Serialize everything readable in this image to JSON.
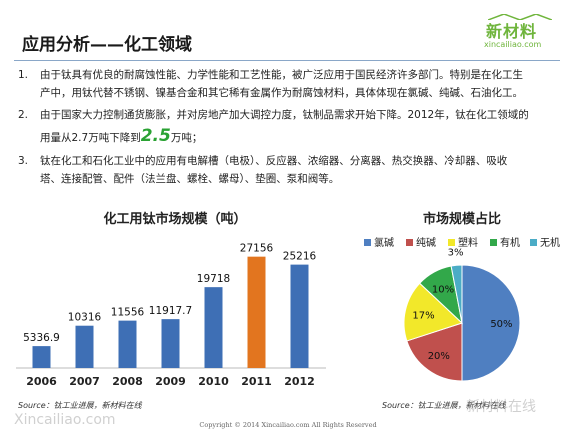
{
  "page": {
    "title": "应用分析——化工领域",
    "logo_main": "新材料",
    "logo_sub": "xincailiao.com",
    "copyright": "Copyright © 2014   Xincailiao.com   All Rights Reserved"
  },
  "bullets": [
    {
      "num": "1.",
      "lines": [
        "由于钛具有优良的耐腐蚀性能、力学性能和工艺性能，被广泛应用于国民经济许多部门。特别是在化工生",
        "产中，用钛代替不锈钢、镍基合金和其它稀有金属作为耐腐蚀材料，具体体现在氯碱、纯碱、石油化工。"
      ]
    },
    {
      "num": "2.",
      "line1": "由于国家大力控制通货膨胀，并对房地产加大调控力度，钛制品需求开始下降。2012年，钛在化工领域的",
      "pre": "用量从2.7万吨下降到",
      "big": "2.5",
      "post": "万吨；"
    },
    {
      "num": "3.",
      "lines": [
        "钛在化工和石化工业中的应用有电解槽（电极）、反应器、浓缩器、分离器、热交换器、冷却器、吸收",
        "塔、连接配管、配件（法兰盘、螺栓、螺母）、垫圈、泵和阀等。"
      ]
    }
  ],
  "chart_data": [
    {
      "type": "bar",
      "title": "化工用钛市场规模（吨）",
      "categories": [
        "2006",
        "2007",
        "2008",
        "2009",
        "2010",
        "2011",
        "2012"
      ],
      "values": [
        5336.9,
        10316,
        11556,
        11917.7,
        19718,
        27156,
        25216
      ],
      "value_labels": [
        "5336.9",
        "10316",
        "11556",
        "11917.7",
        "19718",
        "27156",
        "25216"
      ],
      "highlight_index": 5,
      "colors": {
        "bar": "#3e6fb5",
        "highlight": "#e2751f"
      },
      "ylim": [
        0,
        30000
      ],
      "grid": false,
      "source": "Source：钛工业进展，新材料在线"
    },
    {
      "type": "pie",
      "title": "市场规模占比",
      "legend_position": "top",
      "slices": [
        {
          "name": "氯碱",
          "value": 50,
          "label": "50%",
          "color": "#4f7fc1"
        },
        {
          "name": "纯碱",
          "value": 20,
          "label": "20%",
          "color": "#c0504d"
        },
        {
          "name": "塑料",
          "value": 17,
          "label": "17%",
          "color": "#f2e82a"
        },
        {
          "name": "有机",
          "value": 10,
          "label": "10%",
          "color": "#32a84a"
        },
        {
          "name": "无机",
          "value": 3,
          "label": "3%",
          "color": "#4bacc6"
        }
      ],
      "source": "Source：钛工业进展，新材料在线"
    }
  ],
  "watermarks": [
    "Xincailiao.com",
    "新材料在线"
  ]
}
